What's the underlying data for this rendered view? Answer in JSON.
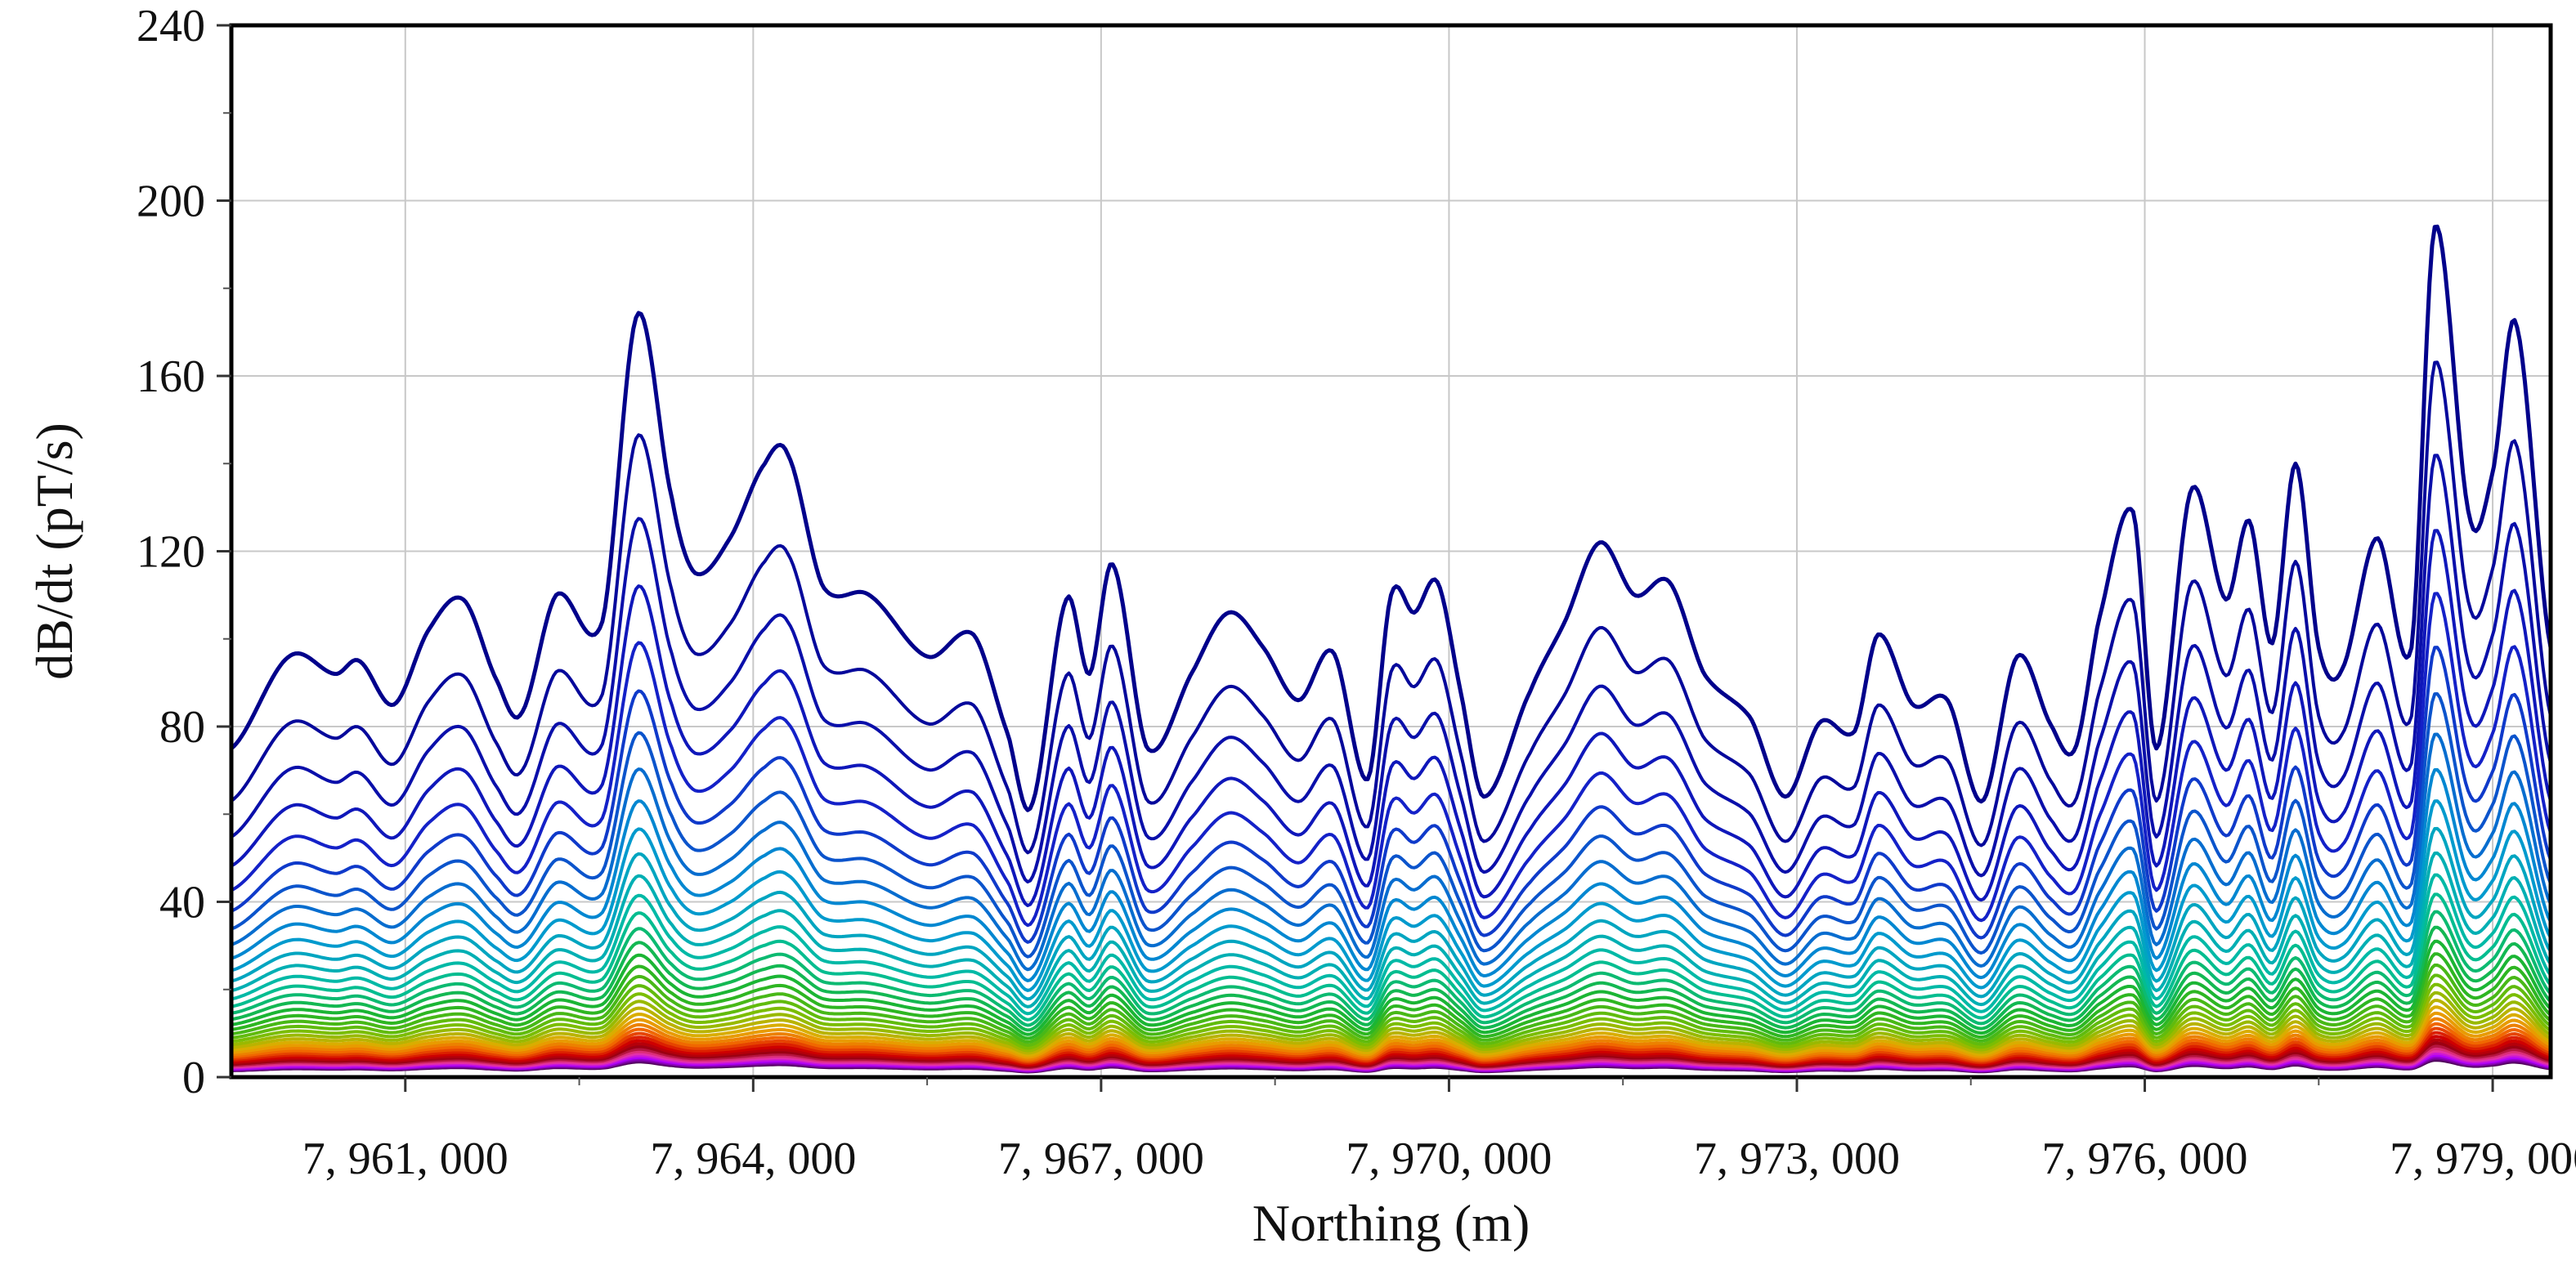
{
  "chart_data": {
    "type": "line",
    "title": "",
    "xlabel": "Northing (m)",
    "ylabel": "dB/dt (pT/s)",
    "xlim": [
      7959500,
      7979500
    ],
    "ylim": [
      0,
      240
    ],
    "grid": true,
    "legend": "none",
    "x_ticks": [
      7961000,
      7964000,
      7967000,
      7970000,
      7973000,
      7976000,
      7979000
    ],
    "x_tick_labels": [
      "7, 961, 000",
      "7, 964, 000",
      "7, 967, 000",
      "7, 970, 000",
      "7, 973, 000",
      "7, 976, 000",
      "7, 979, 000"
    ],
    "y_ticks": [
      0,
      40,
      80,
      120,
      160,
      200,
      240
    ],
    "y_tick_labels": [
      "0",
      "40",
      "80",
      "120",
      "160",
      "200",
      "240"
    ],
    "channel_count": 40,
    "channel_note": "Stacked decay-time channels; channel 1 (dark blue, top) to channel 40 (dark purple, bottom)",
    "channel_scale_first_to_last": [
      1.0,
      0.02
    ],
    "profile": {
      "x": [
        7959500,
        7960000,
        7960400,
        7960600,
        7960900,
        7961200,
        7961500,
        7961800,
        7962000,
        7962300,
        7962700,
        7963000,
        7963300,
        7963500,
        7963800,
        7964100,
        7964300,
        7964600,
        7965000,
        7965500,
        7965900,
        7966200,
        7966400,
        7966700,
        7966900,
        7967100,
        7967400,
        7967800,
        7968100,
        7968400,
        7968700,
        7969000,
        7969300,
        7969500,
        7969700,
        7969900,
        7970100,
        7970300,
        7970700,
        7971000,
        7971300,
        7971600,
        7971900,
        7972200,
        7972600,
        7972900,
        7973200,
        7973500,
        7973700,
        7974000,
        7974300,
        7974600,
        7974900,
        7975200,
        7975400,
        7975600,
        7975900,
        7976100,
        7976400,
        7976700,
        7976900,
        7977100,
        7977300,
        7977500,
        7977700,
        7978000,
        7978300,
        7978500,
        7978800,
        7979000,
        7979200,
        7979500
      ],
      "channel1_values": [
        75,
        96,
        92,
        95,
        85,
        102,
        109,
        90,
        83,
        110,
        104,
        174,
        132,
        115,
        123,
        140,
        142,
        112,
        110,
        96,
        101,
        78,
        62,
        109,
        92,
        117,
        75,
        93,
        106,
        98,
        86,
        97,
        68,
        110,
        106,
        113,
        88,
        64,
        88,
        104,
        122,
        110,
        113,
        92,
        82,
        64,
        81,
        79,
        101,
        85,
        86,
        63,
        96,
        80,
        75,
        104,
        129,
        75,
        134,
        109,
        127,
        99,
        140,
        98,
        93,
        123,
        98,
        194,
        128,
        138,
        172,
        98
      ]
    }
  }
}
